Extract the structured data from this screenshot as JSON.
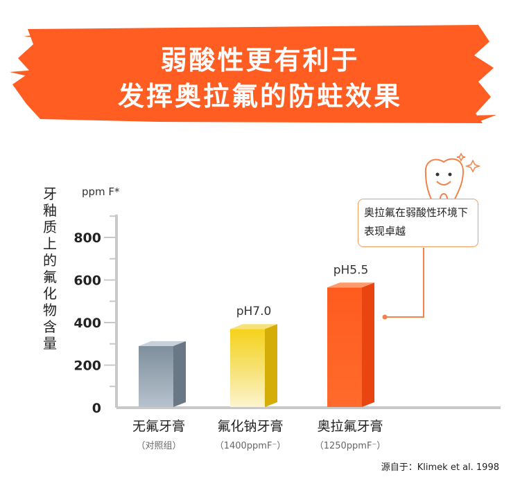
{
  "banner": {
    "line1": "弱酸性更有利于",
    "line2": "发挥奥拉氟的防蛀效果",
    "bg_color": "#ff5d22"
  },
  "y_axis_title": "牙釉质上的氟化物含量",
  "unit_label": "ppm F*",
  "callout": "奥拉氟在弱酸性环境下表现卓越",
  "source": "源自于：Klimek et al. 1998",
  "chart_data": {
    "type": "bar",
    "categories": [
      "无氟牙膏",
      "氟化钠牙膏",
      "奥拉氟牙膏"
    ],
    "subcategories": [
      "（对照组）",
      "（1400ppmF⁻）",
      "（1250ppmF⁻）"
    ],
    "values": [
      290,
      370,
      565
    ],
    "data_labels": [
      "",
      "pH7.0",
      "pH5.5"
    ],
    "ylabel": "牙釉质上的氟化物含量",
    "ylim": [
      0,
      900
    ],
    "yticks": [
      0,
      200,
      400,
      600,
      800
    ],
    "colors": [
      "#8e9dab",
      "#f2d22a",
      "#fb5c20"
    ],
    "grid": false,
    "legend": "none"
  }
}
